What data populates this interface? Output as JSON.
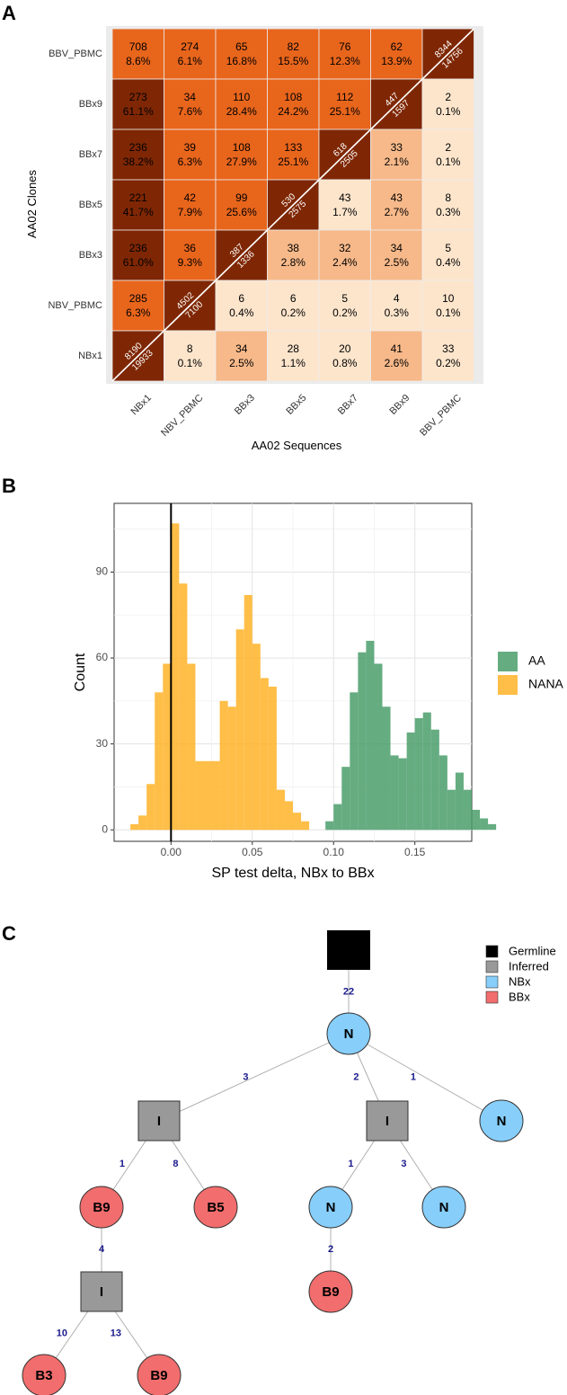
{
  "panels": {
    "a": "A",
    "b": "B",
    "c": "C"
  },
  "chart_data": [
    {
      "type": "heatmap",
      "title": "",
      "xlabel": "AA02 Sequences",
      "ylabel": "AA02 Clones",
      "x_categories": [
        "NBx1",
        "NBV_PBMC",
        "BBx3",
        "BBx5",
        "BBx7",
        "BBx9",
        "BBV_PBMC"
      ],
      "y_categories": [
        "BBV_PBMC",
        "BBx9",
        "BBx7",
        "BBx5",
        "BBx3",
        "NBV_PBMC",
        "NBx1"
      ],
      "cells": [
        [
          {
            "count": "708",
            "pct": "8.6%"
          },
          {
            "count": "274",
            "pct": "6.1%"
          },
          {
            "count": "65",
            "pct": "16.8%"
          },
          {
            "count": "82",
            "pct": "15.5%"
          },
          {
            "count": "76",
            "pct": "12.3%"
          },
          {
            "count": "62",
            "pct": "13.9%"
          },
          {
            "diag": [
              "8344",
              "14756"
            ]
          }
        ],
        [
          {
            "count": "273",
            "pct": "61.1%"
          },
          {
            "count": "34",
            "pct": "7.6%"
          },
          {
            "count": "110",
            "pct": "28.4%"
          },
          {
            "count": "108",
            "pct": "24.2%"
          },
          {
            "count": "112",
            "pct": "25.1%"
          },
          {
            "diag": [
              "447",
              "1597"
            ]
          },
          {
            "count": "2",
            "pct": "0.1%"
          }
        ],
        [
          {
            "count": "236",
            "pct": "38.2%"
          },
          {
            "count": "39",
            "pct": "6.3%"
          },
          {
            "count": "108",
            "pct": "27.9%"
          },
          {
            "count": "133",
            "pct": "25.1%"
          },
          {
            "diag": [
              "618",
              "2505"
            ]
          },
          {
            "count": "33",
            "pct": "2.1%"
          },
          {
            "count": "2",
            "pct": "0.1%"
          }
        ],
        [
          {
            "count": "221",
            "pct": "41.7%"
          },
          {
            "count": "42",
            "pct": "7.9%"
          },
          {
            "count": "99",
            "pct": "25.6%"
          },
          {
            "diag": [
              "530",
              "2575"
            ]
          },
          {
            "count": "43",
            "pct": "1.7%"
          },
          {
            "count": "43",
            "pct": "2.7%"
          },
          {
            "count": "8",
            "pct": "0.3%"
          }
        ],
        [
          {
            "count": "236",
            "pct": "61.0%"
          },
          {
            "count": "36",
            "pct": "9.3%"
          },
          {
            "diag": [
              "387",
              "1336"
            ]
          },
          {
            "count": "38",
            "pct": "2.8%"
          },
          {
            "count": "32",
            "pct": "2.4%"
          },
          {
            "count": "34",
            "pct": "2.5%"
          },
          {
            "count": "5",
            "pct": "0.4%"
          }
        ],
        [
          {
            "count": "285",
            "pct": "6.3%"
          },
          {
            "diag": [
              "4502",
              "7100"
            ]
          },
          {
            "count": "6",
            "pct": "0.4%"
          },
          {
            "count": "6",
            "pct": "0.2%"
          },
          {
            "count": "5",
            "pct": "0.2%"
          },
          {
            "count": "4",
            "pct": "0.3%"
          },
          {
            "count": "10",
            "pct": "0.1%"
          }
        ],
        [
          {
            "diag": [
              "8190",
              "19933"
            ]
          },
          {
            "count": "8",
            "pct": "0.1%"
          },
          {
            "count": "34",
            "pct": "2.5%"
          },
          {
            "count": "28",
            "pct": "1.1%"
          },
          {
            "count": "20",
            "pct": "0.8%"
          },
          {
            "count": "41",
            "pct": "2.6%"
          },
          {
            "count": "33",
            "pct": "0.2%"
          }
        ]
      ],
      "colors": {
        "diag": "#7f2704",
        "dark": "#b8410a",
        "mid": "#e8651c",
        "light": "#f7b98a",
        "pale": "#fde5cc"
      }
    },
    {
      "type": "bar",
      "title": "",
      "xlabel": "SP test delta, NBx to BBx",
      "ylabel": "Count",
      "xlim": [
        -0.035,
        0.185
      ],
      "ylim": [
        -4,
        114
      ],
      "xticks": [
        0.0,
        0.05,
        0.1,
        0.15
      ],
      "xtick_labels": [
        "0.00",
        "0.05",
        "0.10",
        "0.15"
      ],
      "yticks": [
        0,
        30,
        60,
        90
      ],
      "ytick_labels": [
        "0",
        "30",
        "60",
        "90"
      ],
      "bin_start": -0.025,
      "bin_width": 0.005,
      "vline_x": 0.0,
      "legend_position": "right",
      "series": [
        {
          "name": "AA",
          "color": "#4a9e6b",
          "values": [
            0,
            0,
            0,
            0,
            0,
            0,
            0,
            0,
            0,
            0,
            0,
            0,
            0,
            0,
            0,
            0,
            0,
            0,
            0,
            0,
            0,
            0,
            0,
            0,
            3,
            9,
            22,
            48,
            62,
            66,
            58,
            43,
            26,
            25,
            34,
            39,
            41,
            35,
            26,
            14,
            20,
            14,
            7,
            4,
            2
          ]
        },
        {
          "name": "NANA",
          "color": "#ffb327",
          "values": [
            2,
            5,
            16,
            48,
            58,
            107,
            86,
            58,
            24,
            24,
            24,
            45,
            43,
            70,
            82,
            65,
            53,
            50,
            14,
            10,
            6,
            3,
            0,
            0,
            0,
            0,
            0,
            0,
            0,
            0,
            0,
            0,
            0,
            0,
            0,
            0,
            0,
            0,
            0,
            0,
            0,
            0,
            0,
            0,
            0
          ]
        }
      ]
    }
  ],
  "tree": {
    "legend": [
      {
        "label": "Germline",
        "color": "#000000"
      },
      {
        "label": "Inferred",
        "color": "#999999"
      },
      {
        "label": "NBx",
        "color": "#87cefa"
      },
      {
        "label": "BBx",
        "color": "#f26d6d"
      }
    ],
    "nodes": [
      {
        "id": "germ",
        "kind": "germline",
        "label": ""
      },
      {
        "id": "n1",
        "kind": "nbx",
        "label": "N"
      },
      {
        "id": "i1",
        "kind": "inferred",
        "label": "I"
      },
      {
        "id": "i2",
        "kind": "inferred",
        "label": "I"
      },
      {
        "id": "n2",
        "kind": "nbx",
        "label": "N"
      },
      {
        "id": "b9a",
        "kind": "bbx",
        "label": "B9"
      },
      {
        "id": "b5",
        "kind": "bbx",
        "label": "B5"
      },
      {
        "id": "n3",
        "kind": "nbx",
        "label": "N"
      },
      {
        "id": "n4",
        "kind": "nbx",
        "label": "N"
      },
      {
        "id": "i3",
        "kind": "inferred",
        "label": "I"
      },
      {
        "id": "b9b",
        "kind": "bbx",
        "label": "B9"
      },
      {
        "id": "b3",
        "kind": "bbx",
        "label": "B3"
      },
      {
        "id": "b9c",
        "kind": "bbx",
        "label": "B9"
      }
    ],
    "edges": [
      {
        "from": "germ",
        "to": "n1",
        "label": "22"
      },
      {
        "from": "n1",
        "to": "i1",
        "label": "3"
      },
      {
        "from": "n1",
        "to": "i2",
        "label": "2"
      },
      {
        "from": "n1",
        "to": "n2",
        "label": "1"
      },
      {
        "from": "i1",
        "to": "b9a",
        "label": "1"
      },
      {
        "from": "i1",
        "to": "b5",
        "label": "8"
      },
      {
        "from": "i2",
        "to": "n3",
        "label": "1"
      },
      {
        "from": "i2",
        "to": "n4",
        "label": "3"
      },
      {
        "from": "b9a",
        "to": "i3",
        "label": "4"
      },
      {
        "from": "n3",
        "to": "b9b",
        "label": "2"
      },
      {
        "from": "i3",
        "to": "b3",
        "label": "10"
      },
      {
        "from": "i3",
        "to": "b9c",
        "label": "13"
      }
    ]
  }
}
